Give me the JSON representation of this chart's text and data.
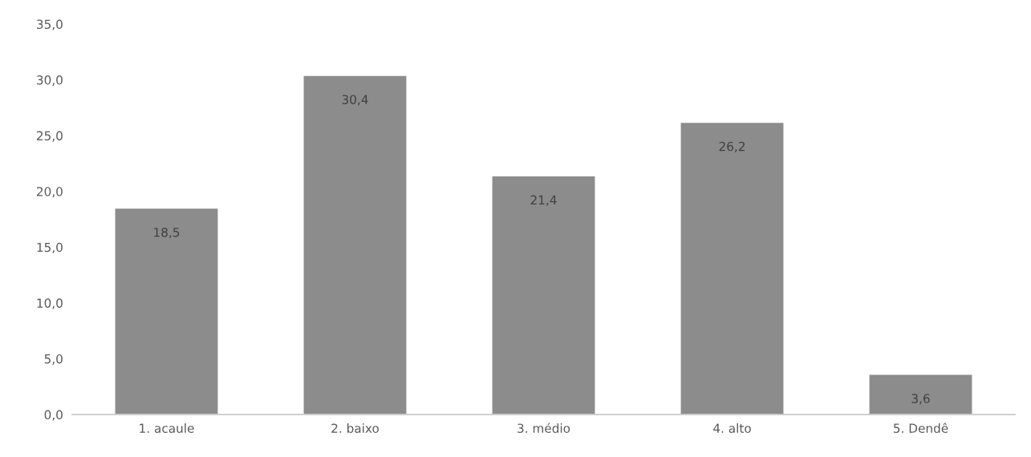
{
  "chart_data": {
    "type": "bar",
    "categories": [
      "1. acaule",
      "2. baixo",
      "3. médio",
      "4. alto",
      "5. Dendê"
    ],
    "values": [
      18.5,
      30.4,
      21.4,
      26.2,
      3.6
    ],
    "value_labels": [
      "18,5",
      "30,4",
      "21,4",
      "26,2",
      "3,6"
    ],
    "color": "#8c8c8c",
    "ylim": [
      0,
      35
    ],
    "yticks": [
      {
        "value": 0,
        "label": "0,0"
      },
      {
        "value": 5,
        "label": "5,0"
      },
      {
        "value": 10,
        "label": "10,0"
      },
      {
        "value": 15,
        "label": "15,0"
      },
      {
        "value": 20,
        "label": "20,0"
      },
      {
        "value": 25,
        "label": "25,0"
      },
      {
        "value": 30,
        "label": "30,0"
      },
      {
        "value": 35,
        "label": "35,0"
      }
    ],
    "grid": false,
    "legend": false
  }
}
